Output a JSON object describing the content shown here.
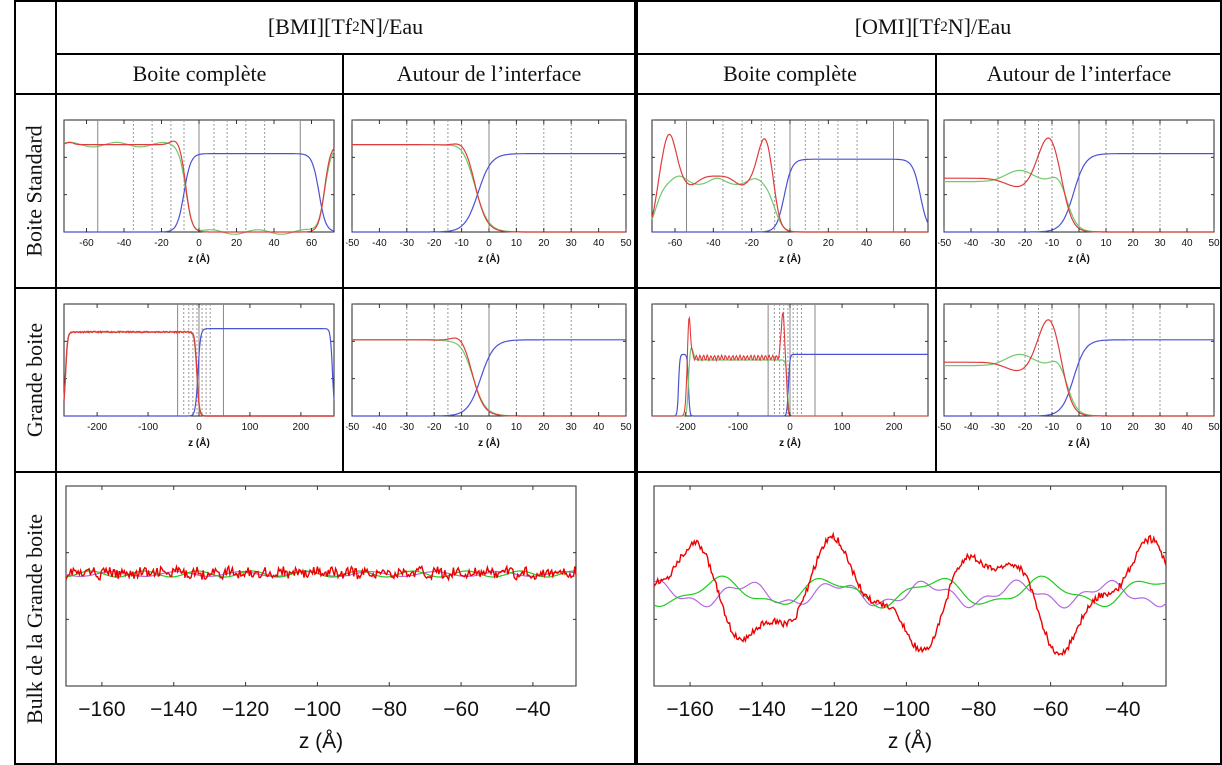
{
  "headers": {
    "group_left_prefix": "[BMI][Tf",
    "group_left_sub": "2",
    "group_left_suffix": "N]/Eau",
    "group_right_prefix": "[OMI][Tf",
    "group_right_sub": "2",
    "group_right_suffix": "N]/Eau",
    "col1": "Boite complète",
    "col2": "Autour de l’interface",
    "col3": "Boite complète",
    "col4": "Autour de l’interface"
  },
  "row_labels": {
    "row1": "Boite Standard",
    "row2": "Grande boite",
    "row3": "Bulk de la Grande boite"
  },
  "colors": {
    "red": "#e03c3c",
    "green": "#72c86e",
    "blue": "#4a52d4",
    "purple": "#b36ae0",
    "bright_red": "#ee0000",
    "bright_green": "#1fcc1f"
  },
  "chart_data": [
    {
      "id": "std-bmi-full",
      "type": "line",
      "xlabel": "z (Å)",
      "ticks": [
        "-60",
        "-40",
        "-20",
        "0",
        "20",
        "40",
        "60"
      ],
      "xlim": [
        -72,
        72
      ],
      "series": [
        {
          "values": "red"
        },
        {
          "values": "green"
        },
        {
          "values": "blue"
        }
      ]
    },
    {
      "id": "std-bmi-iface",
      "type": "line",
      "xlabel": "z (Å)",
      "ticks": [
        "-50",
        "-40",
        "-30",
        "-20",
        "-10",
        "0",
        "10",
        "20",
        "30",
        "40",
        "50"
      ],
      "xlim": [
        -50,
        50
      ]
    },
    {
      "id": "std-omi-full",
      "type": "line",
      "xlabel": "z (Å)",
      "ticks": [
        "-60",
        "-40",
        "-20",
        "0",
        "20",
        "40",
        "60"
      ],
      "xlim": [
        -72,
        72
      ]
    },
    {
      "id": "std-omi-iface",
      "type": "line",
      "xlabel": "z (Å)",
      "ticks": [
        "-50",
        "-40",
        "-30",
        "-20",
        "-10",
        "0",
        "10",
        "20",
        "30",
        "40",
        "50"
      ],
      "xlim": [
        -50,
        50
      ]
    },
    {
      "id": "big-bmi-full",
      "type": "line",
      "xlabel": "z (Å)",
      "ticks": [
        "-200",
        "-100",
        "0",
        "100",
        "200"
      ],
      "xlim": [
        -265,
        265
      ]
    },
    {
      "id": "big-bmi-iface",
      "type": "line",
      "xlabel": "z (Å)",
      "ticks": [
        "-50",
        "-40",
        "-30",
        "-20",
        "-10",
        "0",
        "10",
        "20",
        "30",
        "40",
        "50"
      ],
      "xlim": [
        -50,
        50
      ]
    },
    {
      "id": "big-omi-full",
      "type": "line",
      "xlabel": "z (Å)",
      "ticks": [
        "-200",
        "-100",
        "0",
        "100",
        "200"
      ],
      "xlim": [
        -265,
        265
      ]
    },
    {
      "id": "big-omi-iface",
      "type": "line",
      "xlabel": "z (Å)",
      "ticks": [
        "-50",
        "-40",
        "-30",
        "-20",
        "-10",
        "0",
        "10",
        "20",
        "30",
        "40",
        "50"
      ],
      "xlim": [
        -50,
        50
      ]
    },
    {
      "id": "bulk-bmi",
      "type": "line",
      "xlabel": "z (Å)",
      "ticks": [
        "−160",
        "−140",
        "−120",
        "−100",
        "−80",
        "−60",
        "−40"
      ],
      "xlim": [
        -170,
        -28
      ]
    },
    {
      "id": "bulk-omi",
      "type": "line",
      "xlabel": "z (Å)",
      "ticks": [
        "−160",
        "−140",
        "−120",
        "−100",
        "−80",
        "−60",
        "−40"
      ],
      "xlim": [
        -170,
        -28
      ]
    }
  ]
}
